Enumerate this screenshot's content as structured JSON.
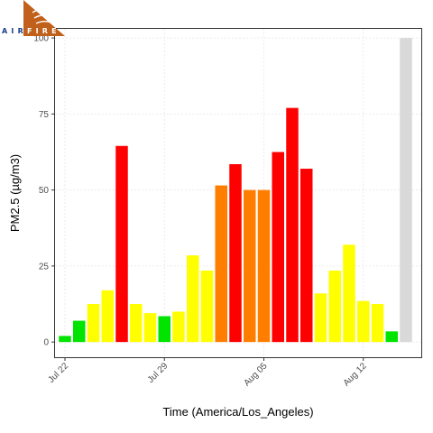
{
  "logo": {
    "text_left": "AIR",
    "text_right": "FIRE"
  },
  "chart_data": {
    "type": "bar",
    "xlabel": "Time (America/Los_Angeles)",
    "ylabel": "PM2.5 (µg/m3)",
    "ylim": [
      -5,
      103
    ],
    "yticks": [
      0,
      25,
      50,
      75,
      100
    ],
    "grid": true,
    "x_tick_labels": [
      {
        "index": 0,
        "label": "Jul 22"
      },
      {
        "index": 7,
        "label": "Jul 29"
      },
      {
        "index": 14,
        "label": "Aug 05"
      },
      {
        "index": 21,
        "label": "Aug 12"
      }
    ],
    "values": [
      2,
      7,
      12.5,
      17,
      64.5,
      12.5,
      9.5,
      8.5,
      10,
      28.5,
      23.5,
      51.5,
      58.5,
      50,
      50,
      62.5,
      77,
      57,
      16,
      23.5,
      32,
      13.5,
      12.5,
      3.5,
      100
    ],
    "colors": [
      "#00e400",
      "#00e400",
      "#ffff00",
      "#ffff00",
      "#ff0000",
      "#ffff00",
      "#ffff00",
      "#00e400",
      "#ffff00",
      "#ffff00",
      "#ffff00",
      "#ff7e00",
      "#ff0000",
      "#ff7e00",
      "#ff7e00",
      "#ff0000",
      "#ff0000",
      "#ff0000",
      "#ffff00",
      "#ffff00",
      "#ffff00",
      "#ffff00",
      "#ffff00",
      "#00e400",
      "#d9d9d9"
    ]
  }
}
